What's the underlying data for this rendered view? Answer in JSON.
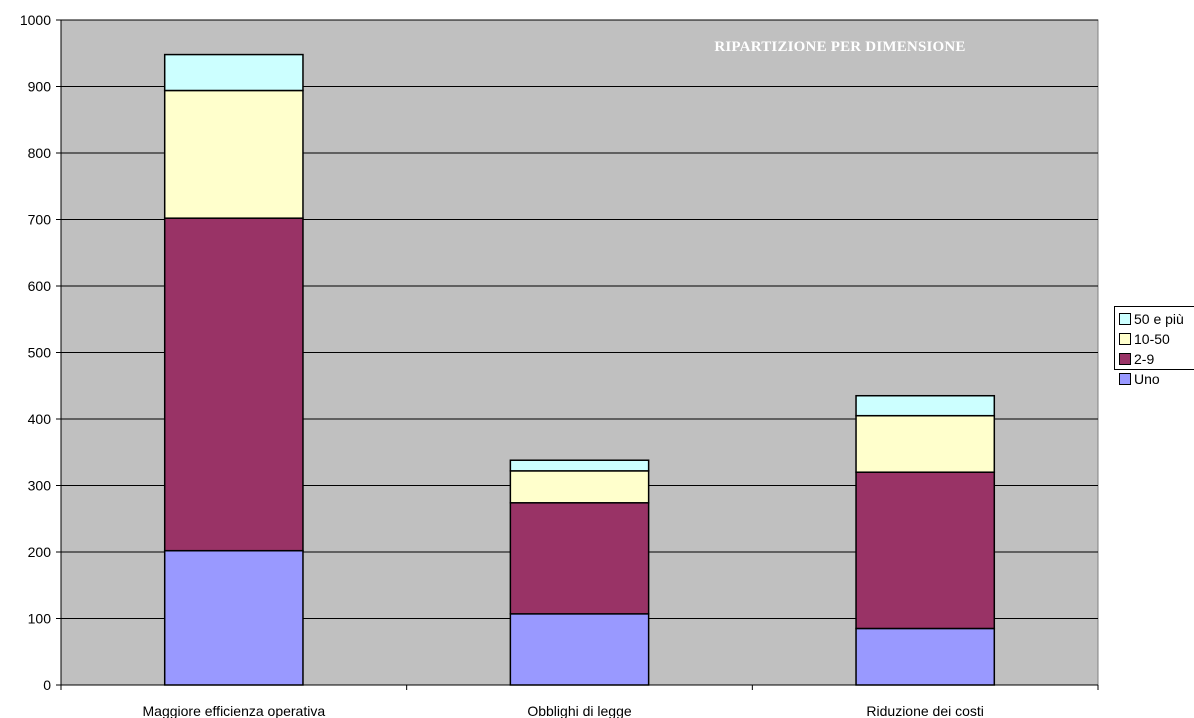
{
  "chart_data": {
    "type": "bar",
    "stacked": true,
    "title": "RIPARTIZIONE PER DIMENSIONE",
    "categories": [
      "Maggiore efficienza operativa",
      "Obblighi di legge",
      "Riduzione dei costi"
    ],
    "ylim": [
      0,
      1000
    ],
    "yticks": [
      0,
      100,
      200,
      300,
      400,
      500,
      600,
      700,
      800,
      900,
      1000
    ],
    "grid": true,
    "legend_position": "right",
    "background_color": "#c0c0c0",
    "series": [
      {
        "name": "Uno",
        "color": "#9999ff",
        "values": [
          202,
          107,
          85
        ]
      },
      {
        "name": "2-9",
        "color": "#993366",
        "values": [
          500,
          167,
          235
        ]
      },
      {
        "name": "10-50",
        "color": "#ffffcc",
        "values": [
          192,
          48,
          85
        ]
      },
      {
        "name": "50 e più",
        "color": "#ccffff",
        "values": [
          54,
          16,
          30
        ]
      }
    ]
  }
}
